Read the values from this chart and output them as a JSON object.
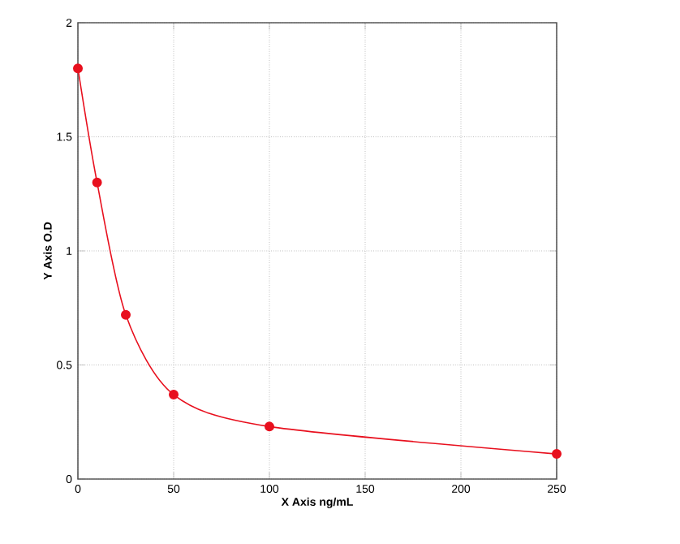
{
  "chart_data": {
    "type": "line",
    "xlabel": "X Axis ng/mL",
    "ylabel": "Y Axis O.D",
    "x": [
      0,
      10,
      25,
      50,
      100,
      250
    ],
    "series": [
      {
        "color": "#e8101e",
        "values": [
          1.8,
          1.3,
          0.72,
          0.37,
          0.23,
          0.11
        ]
      }
    ],
    "xlim": [
      0,
      250
    ],
    "ylim": [
      0,
      2
    ],
    "xticks": [
      0,
      50,
      100,
      150,
      200,
      250
    ],
    "yticks": [
      0,
      {
        "value": 0.5,
        "label": "0.5"
      },
      1,
      {
        "value": 1.5,
        "label": "1.5"
      },
      2
    ],
    "grid": true,
    "marker": "circle",
    "line_style": "solid"
  }
}
